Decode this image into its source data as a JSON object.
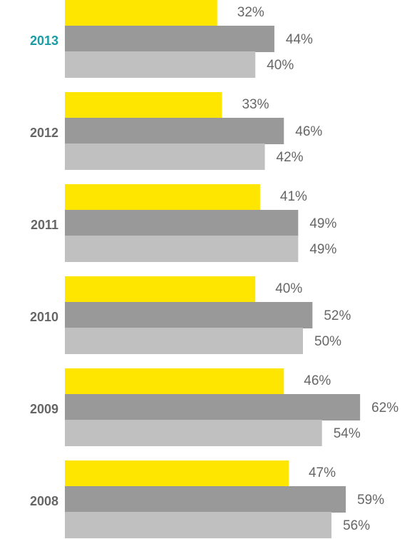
{
  "chart_data": {
    "type": "bar",
    "orientation": "horizontal",
    "categories": [
      "2013",
      "2012",
      "2011",
      "2010",
      "2009",
      "2008"
    ],
    "highlighted_category": "2013",
    "series": [
      {
        "values": [
          32,
          33,
          41,
          40,
          46,
          47
        ],
        "color": "#FFE600"
      },
      {
        "values": [
          44,
          46,
          49,
          52,
          62,
          59
        ],
        "color": "#999999"
      },
      {
        "values": [
          40,
          42,
          49,
          50,
          54,
          56
        ],
        "color": "#C0C0C0"
      }
    ],
    "value_suffix": "%",
    "xlim": [
      0,
      100
    ],
    "grid": false,
    "legend": false,
    "colors": {
      "highlight_label": "#1A9BA6",
      "category_label": "#666666",
      "value_label": "#666666"
    }
  }
}
